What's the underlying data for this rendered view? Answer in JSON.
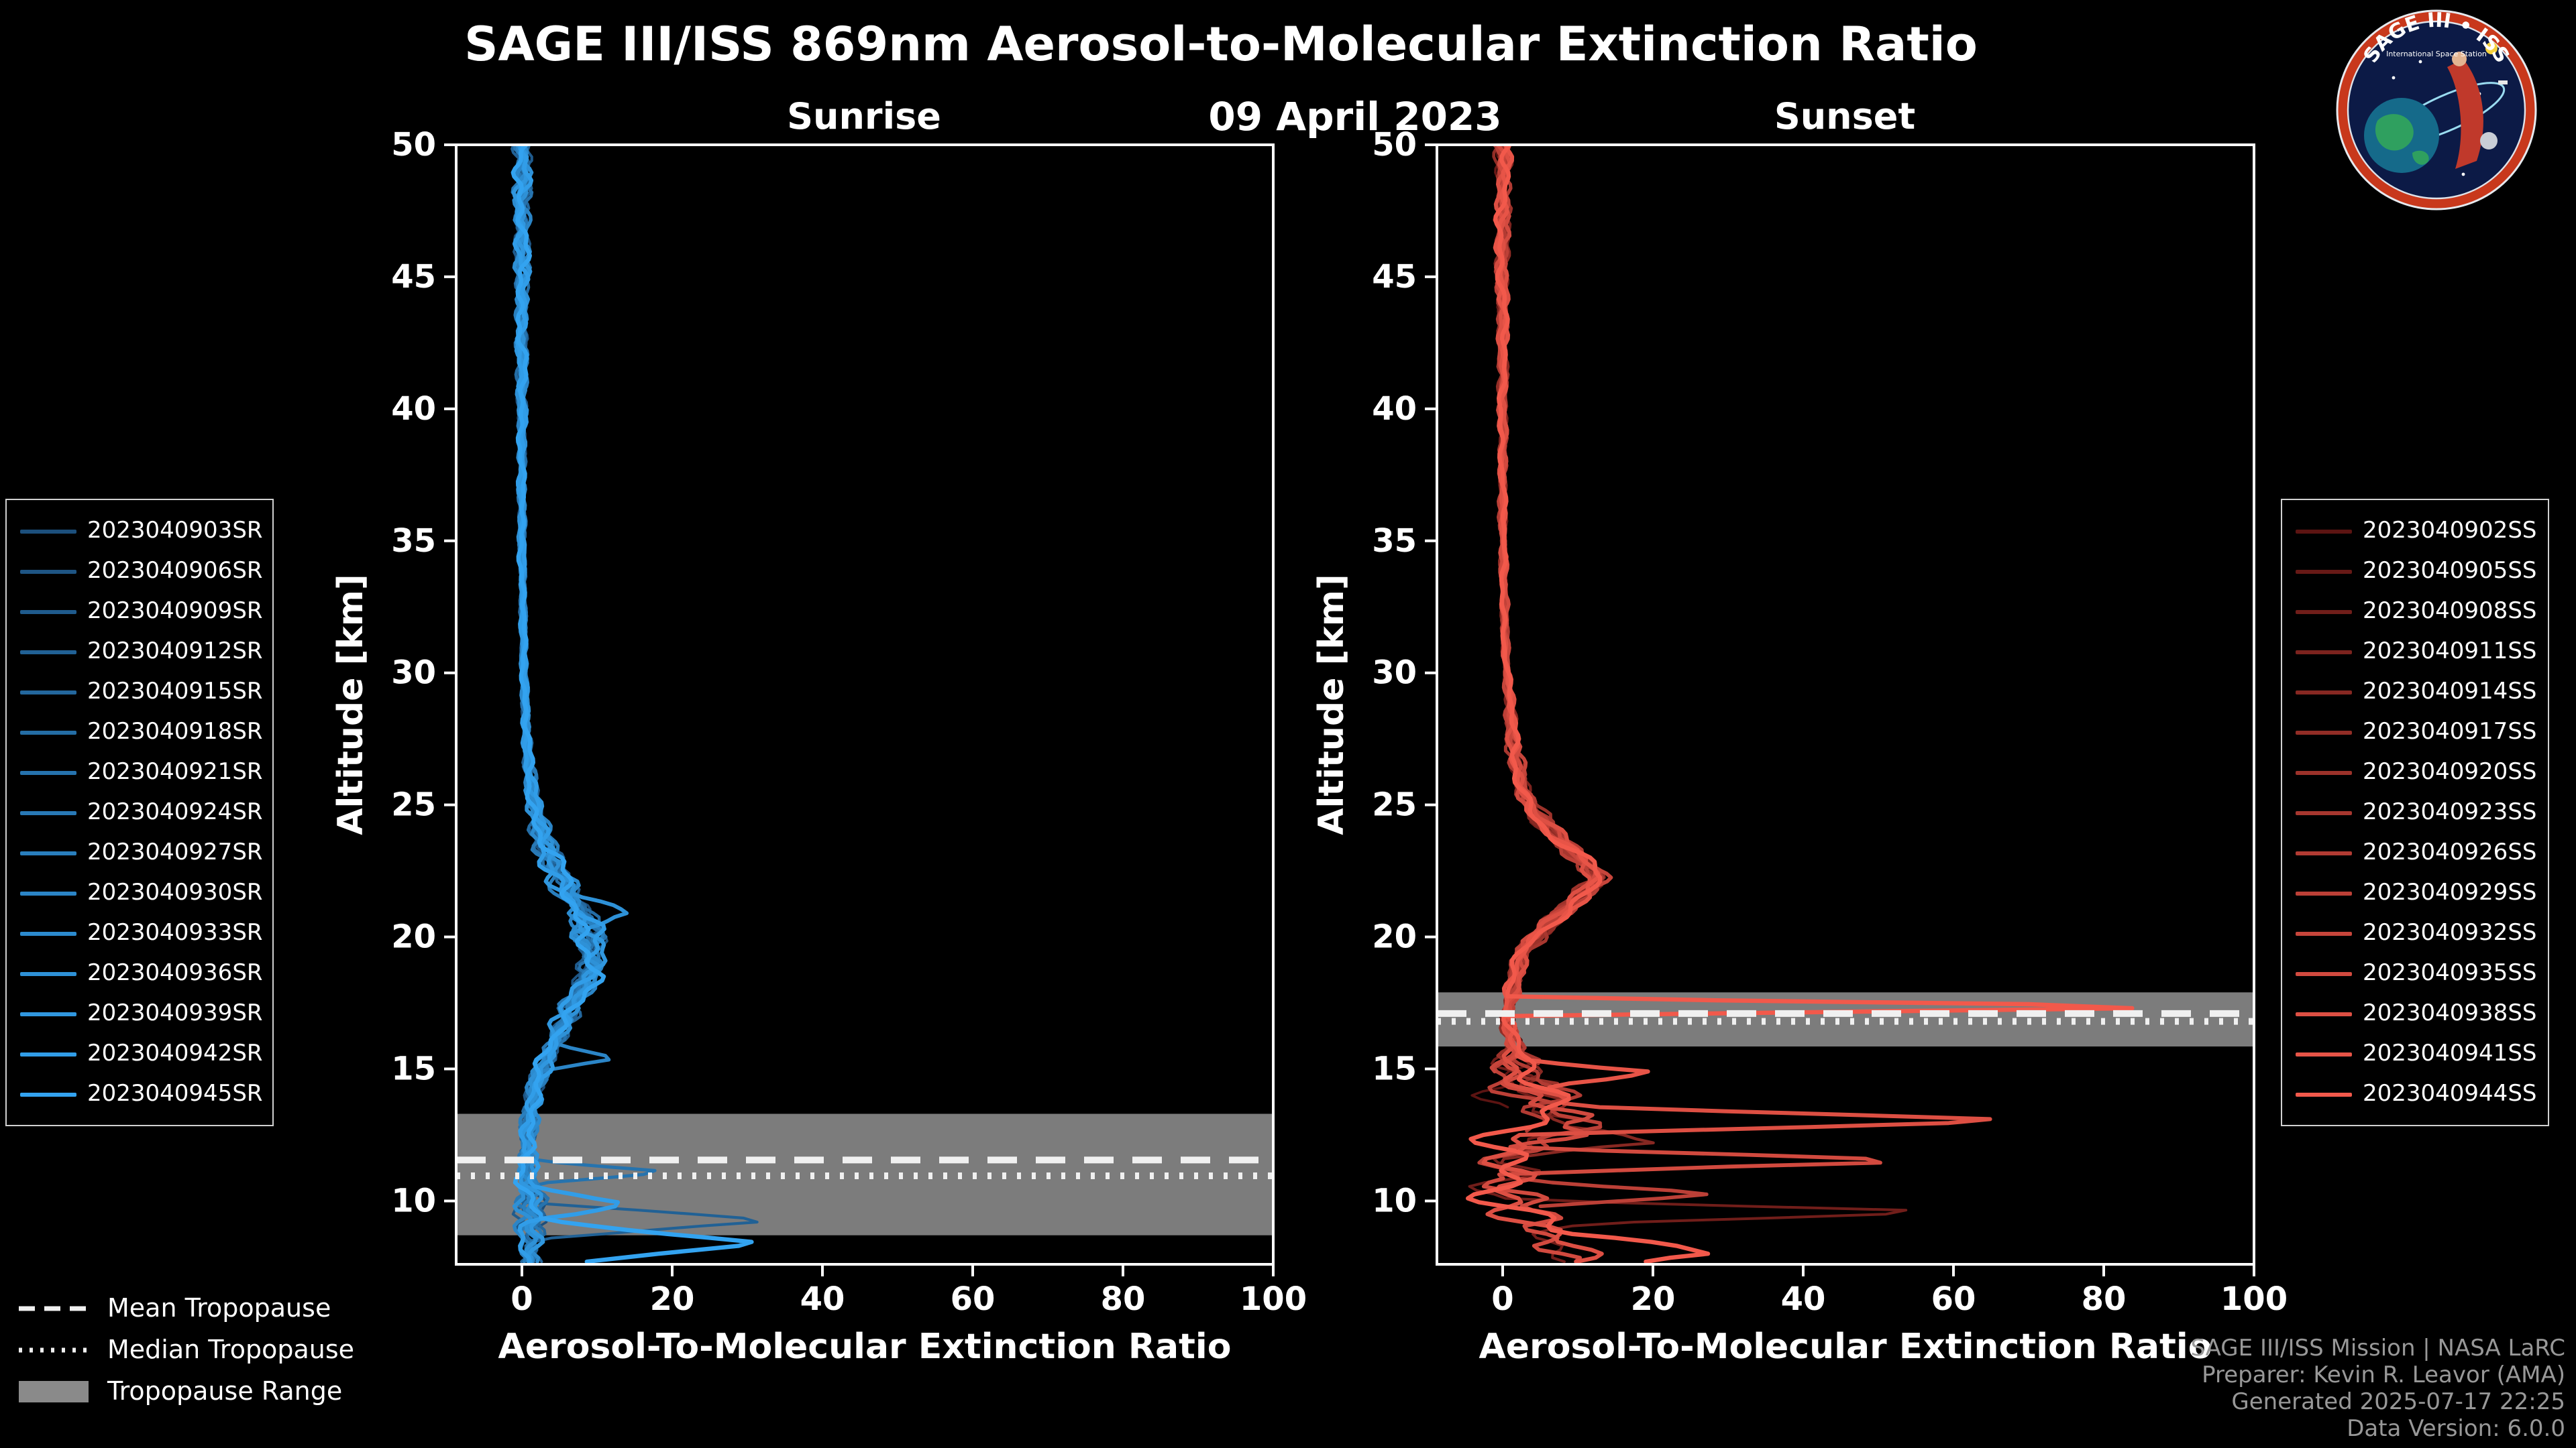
{
  "page": {
    "title": "SAGE III/ISS 869nm Aerosol-to-Molecular Extinction Ratio",
    "date": "09 April 2023",
    "background": "#000000"
  },
  "logo": {
    "title_text": "SAGE III • ISS",
    "subtitle_text": "International Space Station"
  },
  "tropopause_legend": {
    "mean_label": "Mean Tropopause",
    "median_label": "Median Tropopause",
    "range_label": "Tropopause Range"
  },
  "credits": {
    "line1": "SAGE III/ISS Mission | NASA LaRC",
    "line2": "Preparer: Kevin R. Leavor (AMA)",
    "line3": "Generated 2025-07-17 22:25",
    "line4": "Data Version: 6.0.0"
  },
  "chart_data": [
    {
      "type": "line",
      "title": "Sunrise",
      "xlabel": "Aerosol-To-Molecular Extinction Ratio",
      "ylabel": "Altitude [km]",
      "xlim": [
        -8.75,
        100
      ],
      "ylim": [
        7.6,
        50
      ],
      "xticks": [
        0,
        20,
        40,
        60,
        80,
        100
      ],
      "yticks": [
        10,
        15,
        20,
        25,
        30,
        35,
        40,
        45,
        50
      ],
      "color_start": "#1c4f7c",
      "color_end": "#33a3f0",
      "band_color": "#8a8a8a",
      "tropopause_line_color": "#f0f0f0",
      "seed": 11,
      "tropopause": {
        "mean": 11.55,
        "median": 10.95,
        "range": [
          8.7,
          13.3
        ]
      },
      "series": [
        "2023040903SR",
        "2023040906SR",
        "2023040909SR",
        "2023040912SR",
        "2023040915SR",
        "2023040918SR",
        "2023040921SR",
        "2023040924SR",
        "2023040927SR",
        "2023040930SR",
        "2023040933SR",
        "2023040936SR",
        "2023040939SR",
        "2023040942SR",
        "2023040945SR"
      ],
      "base_profile": [
        [
          50,
          0
        ],
        [
          46,
          0
        ],
        [
          40,
          0
        ],
        [
          35,
          0
        ],
        [
          30,
          0.3
        ],
        [
          27,
          0.7
        ],
        [
          25,
          1.6
        ],
        [
          23.5,
          3
        ],
        [
          22.5,
          4.5
        ],
        [
          21.5,
          6.5
        ],
        [
          20.5,
          8.5
        ],
        [
          19.5,
          9.5
        ],
        [
          18.5,
          9
        ],
        [
          17.5,
          7
        ],
        [
          16.5,
          5
        ],
        [
          15.5,
          3.5
        ],
        [
          14.5,
          2
        ],
        [
          13.5,
          1.2
        ],
        [
          12.5,
          0.8
        ],
        [
          11.5,
          0.8
        ],
        [
          10.5,
          1
        ],
        [
          9.5,
          1.5
        ],
        [
          8.5,
          1
        ],
        [
          7.6,
          0.8
        ]
      ],
      "jitter_profile": [
        [
          50,
          1.3
        ],
        [
          44,
          0.9
        ],
        [
          38,
          0.5
        ],
        [
          30,
          0.4
        ],
        [
          26,
          0.8
        ],
        [
          23,
          1.8
        ],
        [
          20,
          2.2
        ],
        [
          17,
          1.8
        ],
        [
          15,
          1.2
        ],
        [
          13,
          1.2
        ],
        [
          11,
          1.6
        ],
        [
          9.5,
          2.4
        ],
        [
          7.6,
          1.6
        ]
      ],
      "spikes": [
        {
          "series": 3,
          "altitude": 9.25,
          "value": 34,
          "width": 0.7
        },
        {
          "series": 6,
          "altitude": 11.1,
          "value": 20,
          "width": 0.45
        },
        {
          "series": 9,
          "altitude": 15.4,
          "value": 10,
          "width": 0.5
        },
        {
          "series": 11,
          "altitude": 20.9,
          "value": 7,
          "width": 0.7
        },
        {
          "series": 13,
          "altitude": 9.9,
          "value": 12,
          "width": 0.6
        },
        {
          "series": 14,
          "altitude": 8.4,
          "value": 30,
          "width": 0.9
        }
      ]
    },
    {
      "type": "line",
      "title": "Sunset",
      "xlabel": "Aerosol-To-Molecular Extinction Ratio",
      "ylabel": "Altitude [km]",
      "xlim": [
        -8.75,
        100
      ],
      "ylim": [
        7.6,
        50
      ],
      "xticks": [
        0,
        20,
        40,
        60,
        80,
        100
      ],
      "yticks": [
        10,
        15,
        20,
        25,
        30,
        35,
        40,
        45,
        50
      ],
      "color_start": "#5c1412",
      "color_end": "#f2594b",
      "band_color": "#8a8a8a",
      "tropopause_line_color": "#f0f0f0",
      "seed": 77,
      "tropopause": {
        "mean": 17.1,
        "median": 16.8,
        "range": [
          15.85,
          17.9
        ]
      },
      "series": [
        "2023040902SS",
        "2023040905SS",
        "2023040908SS",
        "2023040911SS",
        "2023040914SS",
        "2023040917SS",
        "2023040920SS",
        "2023040923SS",
        "2023040926SS",
        "2023040929SS",
        "2023040932SS",
        "2023040935SS",
        "2023040938SS",
        "2023040941SS",
        "2023040944SS"
      ],
      "cutoffs": [
        13.5,
        14.8,
        7.6,
        15.6,
        11.4,
        16.0,
        14.4,
        15.2,
        12.6,
        9.7,
        14.9,
        7.6,
        7.6,
        14.2,
        7.6
      ],
      "base_profile": [
        [
          50,
          0
        ],
        [
          45,
          0
        ],
        [
          40,
          0
        ],
        [
          35,
          0
        ],
        [
          30,
          0.5
        ],
        [
          27,
          1.5
        ],
        [
          25.5,
          3
        ],
        [
          24.5,
          5
        ],
        [
          23.5,
          8
        ],
        [
          22.8,
          11
        ],
        [
          22.2,
          12.5
        ],
        [
          21.5,
          10
        ],
        [
          20.5,
          6
        ],
        [
          19.5,
          3
        ],
        [
          18.5,
          1.5
        ],
        [
          17.5,
          1
        ],
        [
          16.5,
          1
        ],
        [
          15.5,
          1.5
        ],
        [
          14.5,
          3
        ],
        [
          13,
          4
        ],
        [
          11.5,
          4
        ],
        [
          10,
          3
        ],
        [
          8.5,
          4
        ],
        [
          7.6,
          6
        ]
      ],
      "jitter_profile": [
        [
          50,
          1.2
        ],
        [
          44,
          0.8
        ],
        [
          38,
          0.5
        ],
        [
          30,
          0.5
        ],
        [
          26,
          1.2
        ],
        [
          23,
          1.8
        ],
        [
          21,
          1.8
        ],
        [
          19,
          1.2
        ],
        [
          17.5,
          1.0
        ],
        [
          16,
          1.5
        ],
        [
          15,
          4
        ],
        [
          13.5,
          8
        ],
        [
          12,
          9
        ],
        [
          10.5,
          9
        ],
        [
          9,
          8
        ],
        [
          7.6,
          7
        ]
      ],
      "spikes": [
        {
          "series": 2,
          "altitude": 9.6,
          "value": 58,
          "width": 0.45
        },
        {
          "series": 4,
          "altitude": 12.2,
          "value": 22,
          "width": 0.6
        },
        {
          "series": 9,
          "altitude": 10.3,
          "value": 24,
          "width": 0.6
        },
        {
          "series": 11,
          "altitude": 11.5,
          "value": 60,
          "width": 0.5
        },
        {
          "series": 12,
          "altitude": 13.05,
          "value": 58,
          "width": 0.55
        },
        {
          "series": 13,
          "altitude": 14.9,
          "value": 14,
          "width": 0.5
        },
        {
          "series": 14,
          "altitude": 17.35,
          "value": 97,
          "width": 0.35
        },
        {
          "series": 14,
          "altitude": 8.0,
          "value": 22,
          "width": 0.8
        }
      ]
    }
  ]
}
